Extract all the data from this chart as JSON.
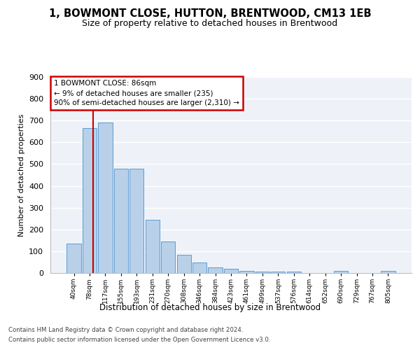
{
  "title": "1, BOWMONT CLOSE, HUTTON, BRENTWOOD, CM13 1EB",
  "subtitle": "Size of property relative to detached houses in Brentwood",
  "xlabel": "Distribution of detached houses by size in Brentwood",
  "ylabel": "Number of detached properties",
  "categories": [
    "40sqm",
    "78sqm",
    "117sqm",
    "155sqm",
    "193sqm",
    "231sqm",
    "270sqm",
    "308sqm",
    "346sqm",
    "384sqm",
    "423sqm",
    "461sqm",
    "499sqm",
    "537sqm",
    "576sqm",
    "614sqm",
    "652sqm",
    "690sqm",
    "729sqm",
    "767sqm",
    "805sqm"
  ],
  "values": [
    135,
    665,
    690,
    480,
    480,
    245,
    145,
    82,
    48,
    25,
    20,
    10,
    8,
    8,
    8,
    0,
    0,
    10,
    0,
    0,
    10
  ],
  "bar_color": "#b8d0e8",
  "bar_edge_color": "#5b9bd5",
  "annotation_text": "1 BOWMONT CLOSE: 86sqm\n← 9% of detached houses are smaller (235)\n90% of semi-detached houses are larger (2,310) →",
  "annotation_box_color": "#ffffff",
  "annotation_box_edge_color": "#cc0000",
  "vline_color": "#cc0000",
  "footer_line1": "Contains HM Land Registry data © Crown copyright and database right 2024.",
  "footer_line2": "Contains public sector information licensed under the Open Government Licence v3.0.",
  "ylim": [
    0,
    900
  ],
  "yticks": [
    0,
    100,
    200,
    300,
    400,
    500,
    600,
    700,
    800,
    900
  ],
  "bg_color": "#eef2f8",
  "vline_x": 1.22
}
